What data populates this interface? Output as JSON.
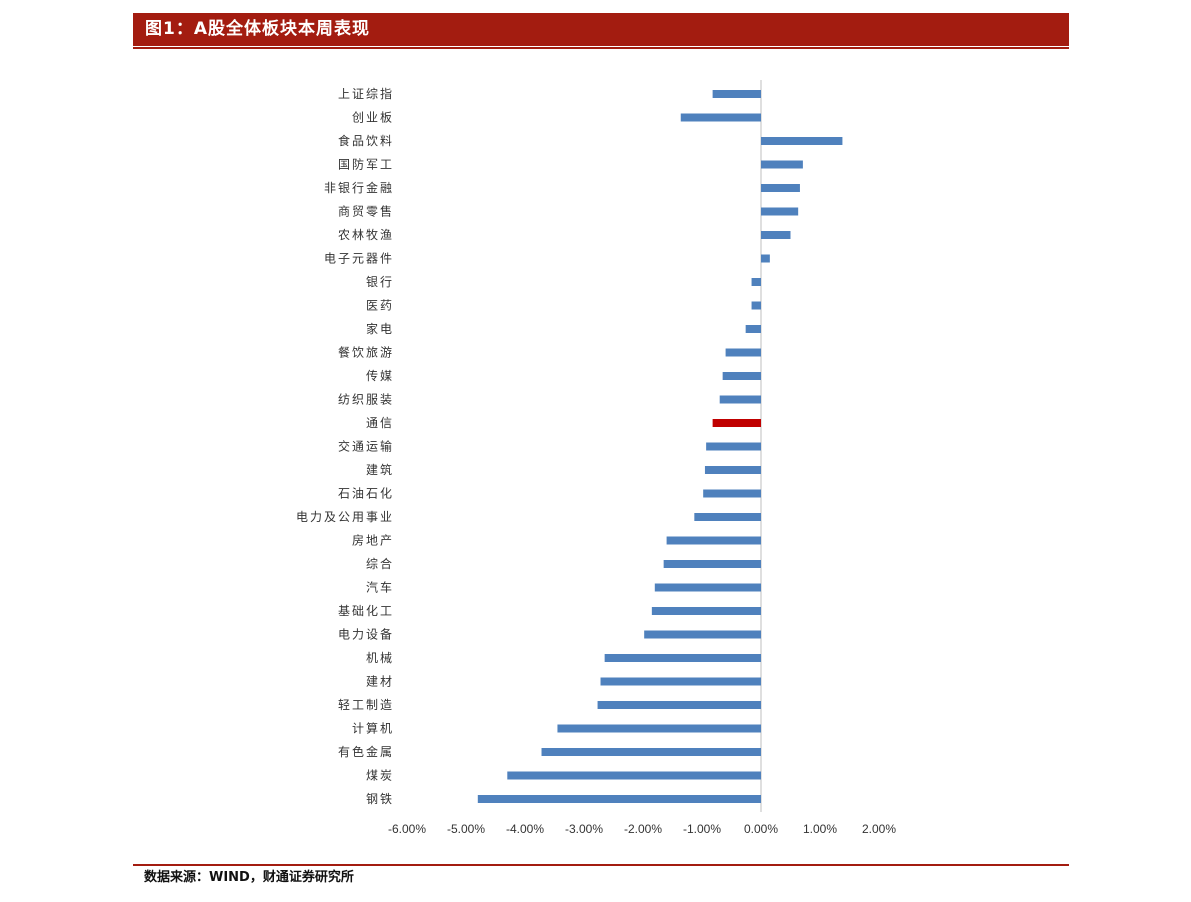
{
  "header": {
    "title": "图1：A股全体板块本周表现"
  },
  "footer": {
    "source": "数据来源：WIND，财通证券研究所"
  },
  "colors": {
    "title_bar": "#a31c10",
    "bar_default": "#4f81bd",
    "bar_highlight": "#c00000"
  },
  "chart_data": {
    "type": "bar",
    "orientation": "horizontal",
    "categories": [
      "上证综指",
      "创业板",
      "食品饮料",
      "国防军工",
      "非银行金融",
      "商贸零售",
      "农林牧渔",
      "电子元器件",
      "银行",
      "医药",
      "家电",
      "餐饮旅游",
      "传媒",
      "纺织服装",
      "通信",
      "交通运输",
      "建筑",
      "石油石化",
      "电力及公用事业",
      "房地产",
      "综合",
      "汽车",
      "基础化工",
      "电力设备",
      "机械",
      "建材",
      "轻工制造",
      "计算机",
      "有色金属",
      "煤炭",
      "钢铁"
    ],
    "values": [
      -0.82,
      -1.36,
      1.38,
      0.71,
      0.66,
      0.63,
      0.5,
      0.15,
      -0.16,
      -0.16,
      -0.26,
      -0.6,
      -0.65,
      -0.7,
      -0.82,
      -0.93,
      -0.95,
      -0.98,
      -1.13,
      -1.6,
      -1.65,
      -1.8,
      -1.85,
      -1.98,
      -2.65,
      -2.72,
      -2.77,
      -3.45,
      -3.72,
      -4.3,
      -4.8
    ],
    "highlight": "通信",
    "xlim": [
      -6.0,
      2.0
    ],
    "xticks": [
      "-6.00%",
      "-5.00%",
      "-4.00%",
      "-3.00%",
      "-2.00%",
      "-1.00%",
      "0.00%",
      "1.00%",
      "2.00%"
    ],
    "grid": false,
    "legend": "none"
  }
}
